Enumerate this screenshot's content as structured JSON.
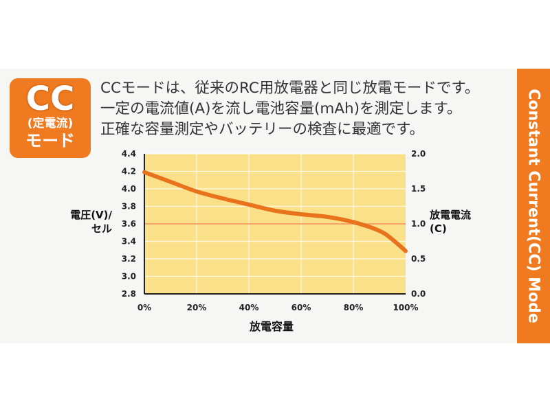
{
  "badge": {
    "title": "CC",
    "subtitle": "(定電流)",
    "mode": "モード"
  },
  "description": [
    "CCモードは、従来のRC用放電器と同じ放電モードです。",
    "一定の電流値(A)を流し電池容量(mAh)を測定します。",
    "正確な容量測定やバッテリーの検査に最適です。"
  ],
  "side_title": "Constant Current(CC) Mode",
  "colors": {
    "accent": "#ef7a1f",
    "plot_bg": "#fbe08a",
    "curve": "#e8731c",
    "current_line": "#f3a36a"
  },
  "chart_data": {
    "type": "line",
    "xlabel": "放電容量",
    "ylabel": "電圧(V)/セル",
    "y2label": "放電電流(C)",
    "xticks": [
      "0%",
      "20%",
      "40%",
      "60%",
      "80%",
      "100%"
    ],
    "yticks": [
      "2.8",
      "3.0",
      "3.2",
      "3.4",
      "3.6",
      "3.8",
      "4.0",
      "4.2",
      "4.4"
    ],
    "y2ticks": [
      "0.0",
      "0.5",
      "1.0",
      "1.5",
      "2.0"
    ],
    "xlim": [
      0,
      100
    ],
    "ylim": [
      2.8,
      4.4
    ],
    "y2lim": [
      0,
      2.0
    ],
    "grid": true,
    "series": [
      {
        "axis": "left",
        "x": [
          0,
          10,
          20,
          30,
          40,
          50,
          60,
          70,
          80,
          90,
          95,
          100
        ],
        "y": [
          4.19,
          4.08,
          3.97,
          3.89,
          3.82,
          3.75,
          3.71,
          3.68,
          3.62,
          3.52,
          3.42,
          3.29
        ]
      },
      {
        "axis": "right",
        "x": [
          0,
          100
        ],
        "y": [
          1.0,
          1.0
        ]
      }
    ]
  }
}
